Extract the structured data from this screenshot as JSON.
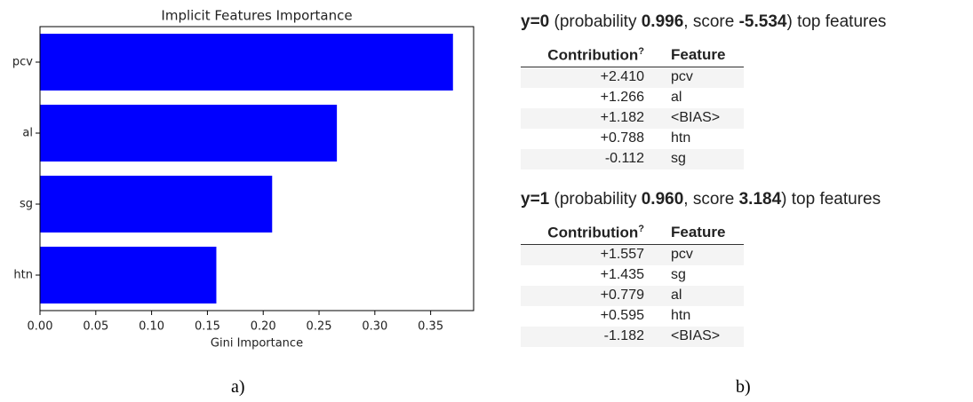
{
  "chart_data": {
    "type": "barh",
    "title": "Implicit Features Importance",
    "xlabel": "Gini Importance",
    "categories": [
      "pcv",
      "al",
      "sg",
      "htn"
    ],
    "values": [
      0.37,
      0.266,
      0.208,
      0.158
    ],
    "color": "#0000ff",
    "xlim": [
      0,
      0.3885
    ],
    "xticks": [
      {
        "value": 0,
        "label": "0.00"
      },
      {
        "value": 0.05,
        "label": "0.05"
      },
      {
        "value": 0.1,
        "label": "0.10"
      },
      {
        "value": 0.15,
        "label": "0.15"
      },
      {
        "value": 0.2,
        "label": "0.20"
      },
      {
        "value": 0.25,
        "label": "0.25"
      },
      {
        "value": 0.3,
        "label": "0.30"
      },
      {
        "value": 0.35,
        "label": "0.35"
      }
    ],
    "grid": false
  },
  "tables": [
    {
      "heading": [
        {
          "text": "y=0",
          "bold": true
        },
        {
          "text": " (probability ",
          "bold": false
        },
        {
          "text": "0.996",
          "bold": true
        },
        {
          "text": ", score ",
          "bold": false
        },
        {
          "text": "-5.534",
          "bold": true
        },
        {
          "text": ") top features",
          "bold": false
        }
      ],
      "columns": [
        "Contribution",
        "Feature"
      ],
      "note": "?",
      "rows": [
        [
          "+2.410",
          "pcv"
        ],
        [
          "+1.266",
          "al"
        ],
        [
          "+1.182",
          "<BIAS>"
        ],
        [
          "+0.788",
          "htn"
        ],
        [
          "-0.112",
          "sg"
        ]
      ]
    },
    {
      "heading": [
        {
          "text": "y=1",
          "bold": true
        },
        {
          "text": " (probability ",
          "bold": false
        },
        {
          "text": "0.960",
          "bold": true
        },
        {
          "text": ", score ",
          "bold": false
        },
        {
          "text": "3.184",
          "bold": true
        },
        {
          "text": ") top features",
          "bold": false
        }
      ],
      "columns": [
        "Contribution",
        "Feature"
      ],
      "note": "?",
      "rows": [
        [
          "+1.557",
          "pcv"
        ],
        [
          "+1.435",
          "sg"
        ],
        [
          "+0.779",
          "al"
        ],
        [
          "+0.595",
          "htn"
        ],
        [
          "-1.182",
          "<BIAS>"
        ]
      ]
    }
  ],
  "captions": [
    "a)",
    "b)"
  ]
}
